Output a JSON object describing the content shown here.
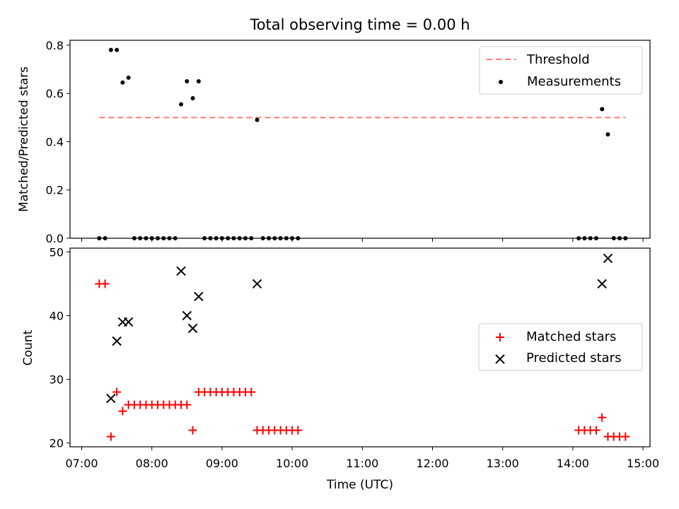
{
  "colors": {
    "threshold": "#ff7b7b",
    "measurement": "#000000",
    "matched": "#ff0000",
    "predicted": "#000000"
  },
  "chart_data": [
    {
      "type": "scatter",
      "title": "Total observing time = 0.00 h",
      "xlabel": "",
      "ylabel": "Matched/Predicted stars",
      "ylim": [
        0,
        0.82
      ],
      "xlim": [
        "06:50",
        "15:06"
      ],
      "yticks": [
        "0.0",
        "0.2",
        "0.4",
        "0.6",
        "0.8"
      ],
      "ytick_values": [
        0,
        0.2,
        0.4,
        0.6,
        0.8
      ],
      "legend_position": "upper right",
      "threshold": {
        "name": "Threshold",
        "value": 0.5,
        "x_start": "07:15",
        "x_end": "14:45"
      },
      "series": [
        {
          "name": "Measurements",
          "marker": "dot",
          "x": [
            "07:15",
            "07:20",
            "07:25",
            "07:30",
            "07:35",
            "07:40",
            "07:45",
            "07:50",
            "07:55",
            "08:00",
            "08:05",
            "08:10",
            "08:15",
            "08:20",
            "08:25",
            "08:30",
            "08:35",
            "08:40",
            "08:45",
            "08:50",
            "08:55",
            "09:00",
            "09:05",
            "09:10",
            "09:15",
            "09:20",
            "09:25",
            "09:30",
            "09:35",
            "09:40",
            "09:45",
            "09:50",
            "09:55",
            "10:00",
            "10:05",
            "14:05",
            "14:10",
            "14:15",
            "14:20",
            "14:25",
            "14:30",
            "14:35",
            "14:40",
            "14:45"
          ],
          "y": [
            0,
            0,
            0.78,
            0.78,
            0.645,
            0.665,
            0,
            0,
            0,
            0,
            0,
            0,
            0,
            0,
            0.555,
            0.65,
            0.58,
            0.65,
            0,
            0,
            0,
            0,
            0,
            0,
            0,
            0,
            0,
            0.49,
            0,
            0,
            0,
            0,
            0,
            0,
            0,
            0,
            0,
            0,
            0,
            0.535,
            0.43,
            0,
            0,
            0
          ]
        }
      ]
    },
    {
      "type": "scatter",
      "title": "",
      "xlabel": "Time (UTC)",
      "ylabel": "Count",
      "ylim": [
        19.4,
        50.6
      ],
      "xlim": [
        "06:50",
        "15:06"
      ],
      "yticks": [
        "20",
        "30",
        "40",
        "50"
      ],
      "ytick_values": [
        20,
        30,
        40,
        50
      ],
      "xticks": [
        "07:00",
        "08:00",
        "09:00",
        "10:00",
        "11:00",
        "12:00",
        "13:00",
        "14:00",
        "15:00"
      ],
      "legend_position": "center right",
      "series": [
        {
          "name": "Matched stars",
          "marker": "plus",
          "x": [
            "07:15",
            "07:20",
            "07:25",
            "07:30",
            "07:35",
            "07:40",
            "07:45",
            "07:50",
            "07:55",
            "08:00",
            "08:05",
            "08:10",
            "08:15",
            "08:20",
            "08:25",
            "08:30",
            "08:35",
            "08:40",
            "08:45",
            "08:50",
            "08:55",
            "09:00",
            "09:05",
            "09:10",
            "09:15",
            "09:20",
            "09:25",
            "09:30",
            "09:35",
            "09:40",
            "09:45",
            "09:50",
            "09:55",
            "10:00",
            "10:05",
            "14:05",
            "14:10",
            "14:15",
            "14:20",
            "14:25",
            "14:30",
            "14:35",
            "14:40",
            "14:45"
          ],
          "y": [
            45,
            45,
            21,
            28,
            25,
            26,
            26,
            26,
            26,
            26,
            26,
            26,
            26,
            26,
            26,
            26,
            22,
            28,
            28,
            28,
            28,
            28,
            28,
            28,
            28,
            28,
            28,
            22,
            22,
            22,
            22,
            22,
            22,
            22,
            22,
            22,
            22,
            22,
            22,
            24,
            21,
            21,
            21,
            21
          ]
        },
        {
          "name": "Predicted stars",
          "marker": "x",
          "x": [
            "07:25",
            "07:30",
            "07:35",
            "07:40",
            "08:25",
            "08:30",
            "08:35",
            "08:40",
            "09:30",
            "14:25",
            "14:30"
          ],
          "y": [
            27,
            36,
            39,
            39,
            47,
            40,
            38,
            43,
            45,
            45,
            49
          ]
        }
      ]
    }
  ]
}
